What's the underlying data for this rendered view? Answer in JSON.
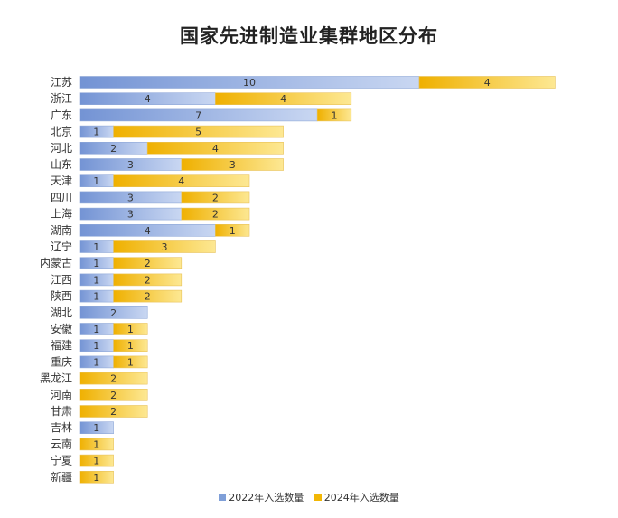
{
  "chart_data": {
    "type": "bar",
    "orientation": "horizontal",
    "stacked": true,
    "title": "国家先进制造业集群地区分布",
    "categories": [
      "江苏",
      "浙江",
      "广东",
      "北京",
      "河北",
      "山东",
      "天津",
      "四川",
      "上海",
      "湖南",
      "辽宁",
      "内蒙古",
      "江西",
      "陕西",
      "湖北",
      "安徽",
      "福建",
      "重庆",
      "黑龙江",
      "河南",
      "甘肃",
      "吉林",
      "云南",
      "宁夏",
      "新疆"
    ],
    "series": [
      {
        "name": "2022年入选数量",
        "color": "#7f9fd8",
        "values": [
          10,
          4,
          7,
          1,
          2,
          3,
          1,
          3,
          3,
          4,
          1,
          1,
          1,
          1,
          2,
          1,
          1,
          1,
          0,
          0,
          0,
          1,
          0,
          0,
          0
        ]
      },
      {
        "name": "2024年入选数量",
        "color": "#f2b705",
        "values": [
          4,
          4,
          1,
          5,
          4,
          3,
          4,
          2,
          2,
          1,
          3,
          2,
          2,
          2,
          0,
          1,
          1,
          1,
          2,
          2,
          2,
          0,
          1,
          1,
          1
        ]
      }
    ],
    "xlim": [
      0,
      14
    ],
    "grid": false,
    "legend": "bottom"
  }
}
